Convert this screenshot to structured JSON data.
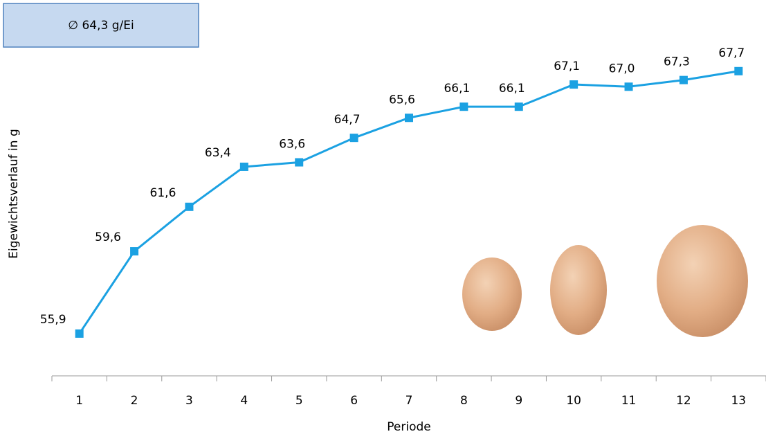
{
  "chart_data": {
    "type": "line",
    "annotation": "∅ 64,3 g/Ei",
    "y_label": "Eigewichtsverlauf  in  g",
    "x_label": "Periode",
    "categories": [
      "1",
      "2",
      "3",
      "4",
      "5",
      "6",
      "7",
      "8",
      "9",
      "10",
      "11",
      "12",
      "13"
    ],
    "values": [
      55.9,
      59.6,
      61.6,
      63.4,
      63.6,
      64.7,
      65.6,
      66.1,
      66.1,
      67.1,
      67.0,
      67.3,
      67.7
    ],
    "value_labels": [
      "55,9",
      "59,6",
      "61,6",
      "63,4",
      "63,6",
      "64,7",
      "65,6",
      "66,1",
      "66,1",
      "67,1",
      "67,0",
      "67,3",
      "67,7"
    ],
    "color": "#1ba1e2",
    "ylim": [
      54,
      69
    ]
  }
}
